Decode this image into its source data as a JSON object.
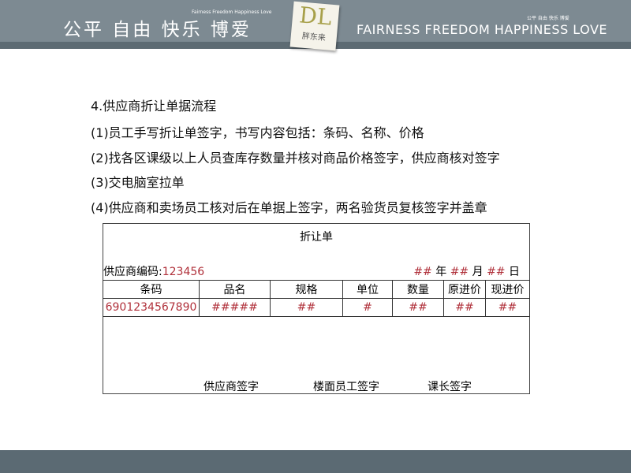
{
  "header": {
    "slogan_cn": "公平 自由 快乐 博爱",
    "slogan_en_small": "Fairness Freedom Happiness Love",
    "logo_text": "DL",
    "logo_cn": "胖东来",
    "slogan_en": "FAIRNESS FREEDOM HAPPINESS LOVE",
    "slogan_cn_small": "公平 自由 快乐 博爱"
  },
  "colors": {
    "header": "#7d8a92",
    "accent_red": "#b0303a"
  },
  "section": {
    "title": "4.供应商折让单据流程",
    "steps": [
      "(1)员工手写折让单签字，书写内容包括：条码、名称、价格",
      "(2)找各区课级以上人员查库存数量并核对商品价格签字，供应商核对签字",
      "(3)交电脑室拉单",
      "(4)供应商和卖场员工核对后在单据上签字，两名验货员复核签字并盖章"
    ]
  },
  "form": {
    "title": "折让单",
    "supplier_label": "供应商编码:",
    "supplier_code": "123456",
    "date": {
      "year": "##",
      "year_label": "年",
      "month": "##",
      "month_label": "月",
      "day": "##",
      "day_label": "日"
    },
    "headers": [
      "条码",
      "品名",
      "规格",
      "单位",
      "数量",
      "原进价",
      "现进价"
    ],
    "row": [
      "6901234567890",
      "#####",
      "##",
      "#",
      "##",
      "##",
      "##"
    ],
    "signatures": [
      "供应商签字",
      "楼面员工签字",
      "课长签字"
    ]
  }
}
